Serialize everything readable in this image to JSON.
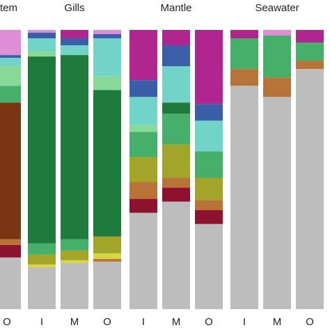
{
  "chart_data": {
    "type": "stacked_bar",
    "groups": [
      {
        "label": "tem",
        "categories": [
          "O"
        ]
      },
      {
        "label": "Gills",
        "categories": [
          "I",
          "M",
          "O"
        ]
      },
      {
        "label": "Mantle",
        "categories": [
          "I",
          "M",
          "O"
        ]
      },
      {
        "label": "Seawater",
        "categories": [
          "I",
          "M",
          "O"
        ]
      }
    ],
    "ylim": [
      0,
      100
    ],
    "series": [
      {
        "color": "#bdbdbd",
        "values": [
          18.5,
          15,
          16.5,
          17,
          34.5,
          38.5,
          30.5,
          80,
          76,
          86
        ]
      },
      {
        "color": "#8c1230",
        "values": [
          4.5,
          0,
          0,
          0,
          5,
          5,
          5,
          0,
          0,
          0
        ]
      },
      {
        "color": "#b87438",
        "values": [
          2,
          0,
          0,
          1,
          6,
          3.5,
          3.5,
          6,
          7,
          3
        ]
      },
      {
        "color": "#d8d640",
        "values": [
          0,
          1,
          1,
          2,
          0,
          0,
          0,
          0,
          0,
          0
        ]
      },
      {
        "color": "#a3a42a",
        "values": [
          0,
          3.5,
          3.5,
          6,
          9,
          12,
          8,
          0,
          0,
          0
        ]
      },
      {
        "color": "#7a3512",
        "values": [
          49,
          0,
          0,
          0,
          0,
          0,
          0,
          0,
          0,
          0
        ]
      },
      {
        "color": "#46b06a",
        "values": [
          6,
          4,
          4,
          0,
          9,
          11,
          9.5,
          11,
          15,
          6.5
        ]
      },
      {
        "color": "#1f7a3d",
        "values": [
          0,
          67,
          66,
          52.5,
          0,
          4,
          0,
          0,
          0,
          0
        ]
      },
      {
        "color": "#88d898",
        "values": [
          7,
          2,
          0,
          5,
          2.5,
          0,
          0,
          0,
          0,
          0
        ]
      },
      {
        "color": "#72d4c8",
        "values": [
          3,
          4.5,
          3.5,
          13.5,
          10,
          13,
          11,
          0,
          0,
          0
        ]
      },
      {
        "color": "#3b5ea8",
        "values": [
          1,
          2,
          2.5,
          1.5,
          6,
          7.5,
          6,
          0,
          0,
          0
        ]
      },
      {
        "color": "#b0268f",
        "values": [
          0,
          0,
          3,
          0,
          18,
          5.5,
          26.5,
          3,
          0,
          4.5
        ]
      },
      {
        "color": "#dc8fd4",
        "values": [
          9,
          1,
          0,
          1.5,
          0,
          0,
          0,
          0,
          2,
          0
        ]
      }
    ]
  }
}
